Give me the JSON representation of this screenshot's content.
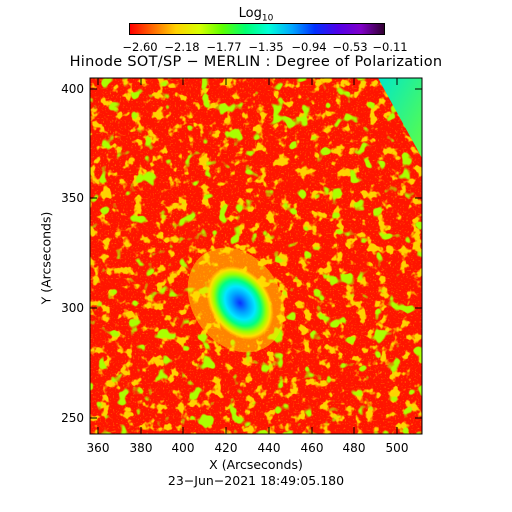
{
  "colorbar": {
    "title": "Log",
    "title_sub": "10",
    "ticks": [
      "−2.60",
      "−2.18",
      "−1.77",
      "−1.35",
      "−0.94",
      "−0.53",
      "−0.11"
    ],
    "colormap": [
      "#ff0000",
      "#ff6a00",
      "#ffd200",
      "#d8ff00",
      "#5cff00",
      "#00ff70",
      "#00ffd8",
      "#00a8ff",
      "#0030ff",
      "#5000e8",
      "#8000c8",
      "#300030"
    ]
  },
  "plot": {
    "title": "Hinode SOT/SP − MERLIN : Degree of Polarization",
    "x_label": "X (Arcseconds)",
    "y_label": "Y (Arcseconds)",
    "timestamp": "23−Jun−2021 18:49:05.180",
    "x_ticks": [
      "360",
      "380",
      "400",
      "420",
      "440",
      "460",
      "480",
      "500"
    ],
    "y_ticks": [
      "250",
      "300",
      "350",
      "400"
    ]
  }
}
